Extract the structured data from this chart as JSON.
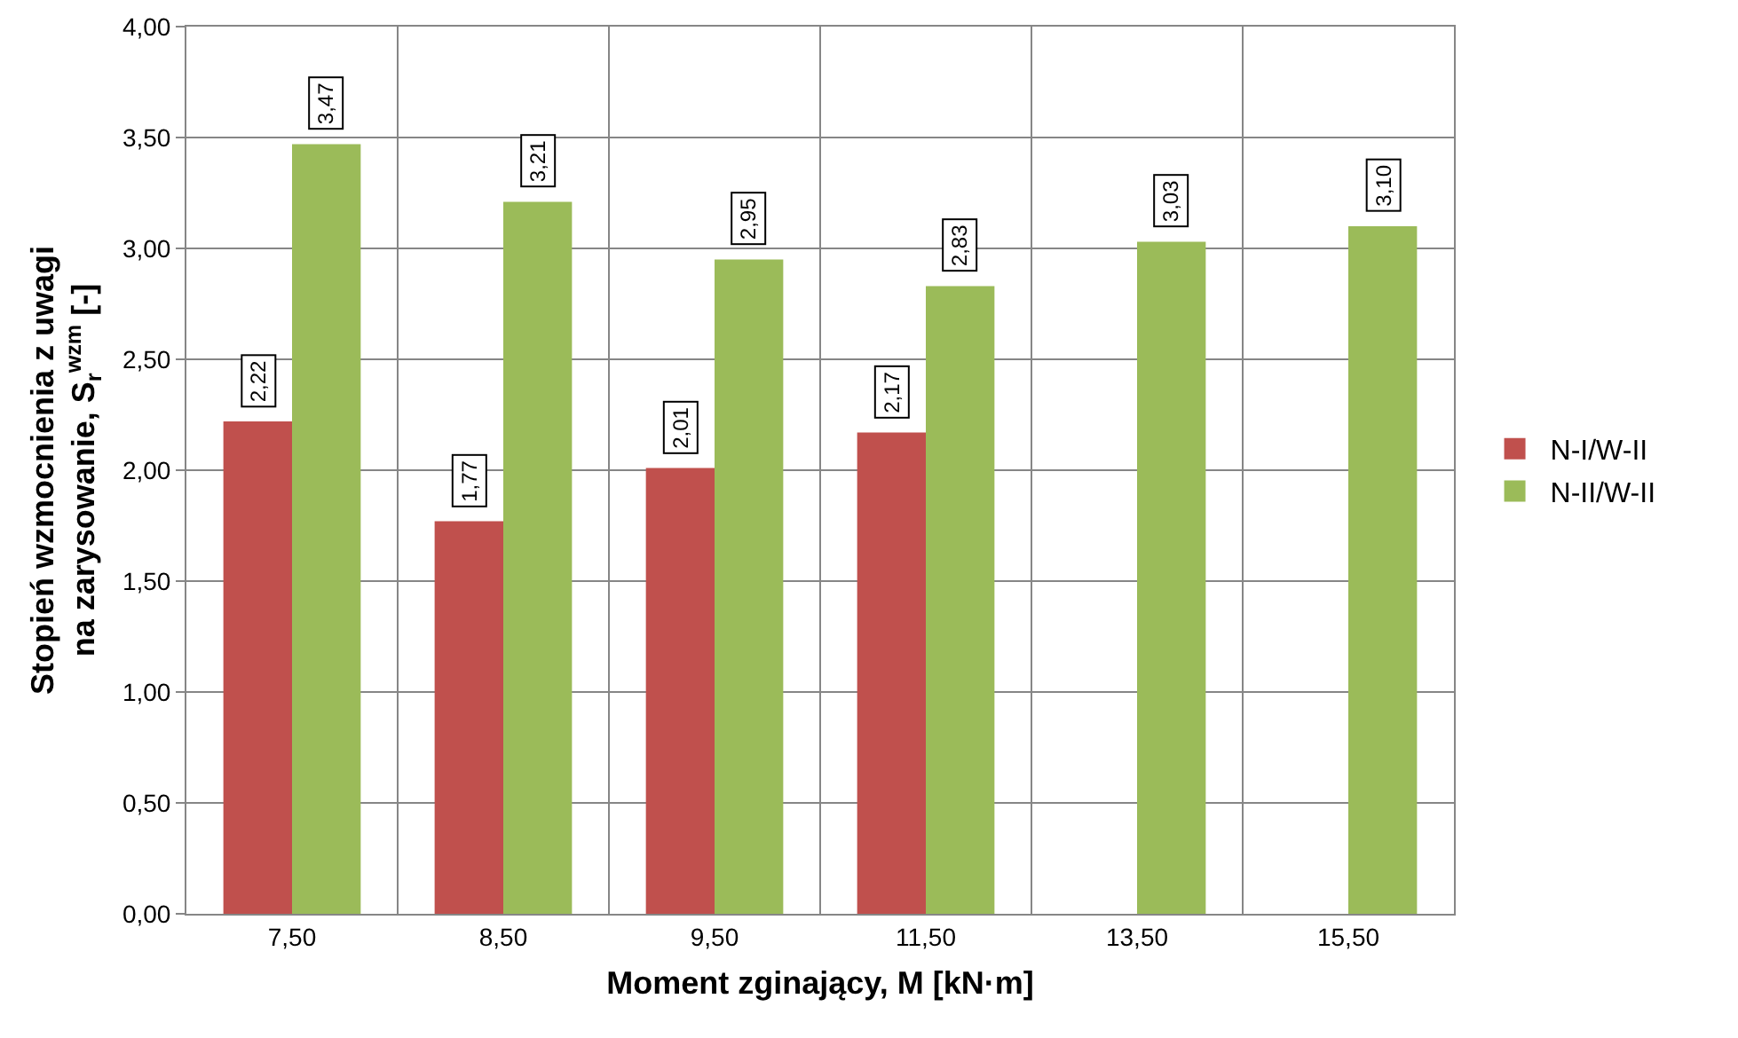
{
  "chart_data": {
    "type": "bar",
    "xlabel": "Moment zginający, M [kN·m]",
    "ylabel": "Stopień wzmocnienia z uwagi\nna zarysowanie, S$_{r}$$^{wzm}$ [-]",
    "categories": [
      "7,50",
      "8,50",
      "9,50",
      "11,50",
      "13,50",
      "15,50"
    ],
    "series": [
      {
        "name": "N-I/W-II",
        "color": "#c0504d",
        "values": [
          2.22,
          1.77,
          2.01,
          2.17,
          null,
          null
        ],
        "value_labels": [
          "2,22",
          "1,77",
          "2,01",
          "2,17",
          null,
          null
        ]
      },
      {
        "name": "N-II/W-II",
        "color": "#9bbb59",
        "values": [
          3.47,
          3.21,
          2.95,
          2.83,
          3.03,
          3.1
        ],
        "value_labels": [
          "3,47",
          "3,21",
          "2,95",
          "2,83",
          "3,03",
          "3,10"
        ]
      }
    ],
    "ylim": [
      0,
      4
    ],
    "yticks": [
      {
        "value": 0,
        "label": "0,00"
      },
      {
        "value": 0.5,
        "label": "0,50"
      },
      {
        "value": 1,
        "label": "1,00"
      },
      {
        "value": 1.5,
        "label": "1,50"
      },
      {
        "value": 2,
        "label": "2,00"
      },
      {
        "value": 2.5,
        "label": "2,50"
      },
      {
        "value": 3,
        "label": "3,00"
      },
      {
        "value": 3.5,
        "label": "3,50"
      },
      {
        "value": 4,
        "label": "4,00"
      }
    ],
    "grid": true,
    "legend": "right"
  }
}
